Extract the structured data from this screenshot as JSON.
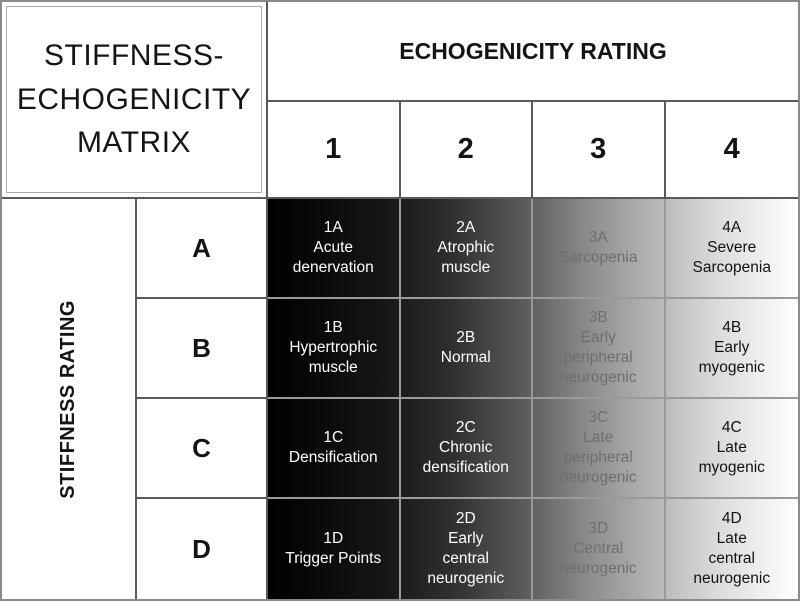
{
  "title": "STIFFNESS-\nECHOGENICITY\nMATRIX",
  "column_axis": {
    "label": "ECHOGENICITY RATING",
    "columns": [
      "1",
      "2",
      "3",
      "4"
    ]
  },
  "row_axis": {
    "label": "STIFFNESS RATING",
    "rows": [
      "A",
      "B",
      "C",
      "D"
    ]
  },
  "cells": [
    [
      {
        "code": "1A",
        "label": "Acute\ndenervation"
      },
      {
        "code": "2A",
        "label": "Atrophic\nmuscle"
      },
      {
        "code": "3A",
        "label": "Sarcopenia"
      },
      {
        "code": "4A",
        "label": "Severe\nSarcopenia"
      }
    ],
    [
      {
        "code": "1B",
        "label": "Hypertrophic\nmuscle"
      },
      {
        "code": "2B",
        "label": "Normal"
      },
      {
        "code": "3B",
        "label": "Early\nperipheral\nneurogenic"
      },
      {
        "code": "4B",
        "label": "Early\nmyogenic"
      }
    ],
    [
      {
        "code": "1C",
        "label": "Densification"
      },
      {
        "code": "2C",
        "label": "Chronic\ndensification"
      },
      {
        "code": "3C",
        "label": "Late\nperipheral\nneurogenic"
      },
      {
        "code": "4C",
        "label": "Late\nmyogenic"
      }
    ],
    [
      {
        "code": "1D",
        "label": "Trigger Points"
      },
      {
        "code": "2D",
        "label": "Early\ncentral\nneurogenic"
      },
      {
        "code": "3D",
        "label": "Central\nneurogenic"
      },
      {
        "code": "4D",
        "label": "Late\ncentral\nneurogenic"
      }
    ]
  ],
  "colors": {
    "gradient_start": "#000000",
    "gradient_end": "#ffffff",
    "grid_line_header": "#5a5a5a",
    "grid_line_matrix": "#9a9a9a",
    "frame_border": "#8a8a8a",
    "text_light": "#ffffff",
    "text_muted": "#6e6e6e",
    "text_dark": "#121212"
  }
}
